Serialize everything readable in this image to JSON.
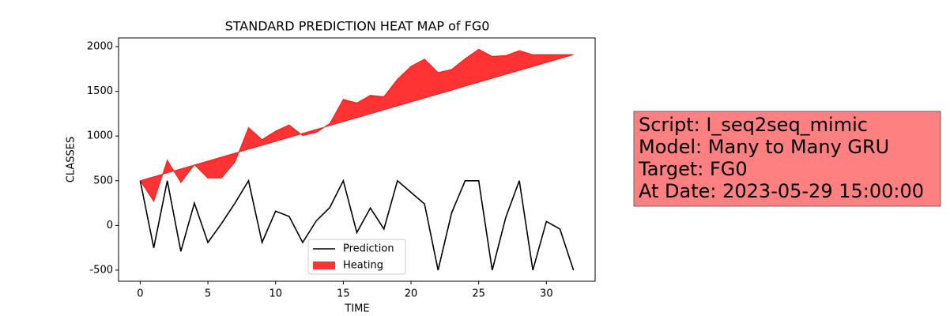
{
  "chart_data": {
    "type": "line",
    "title": "STANDARD PREDICTION HEAT MAP of FG0",
    "xlabel": "TIME",
    "ylabel": "CLASSES",
    "x": [
      0,
      1,
      2,
      3,
      4,
      5,
      6,
      7,
      8,
      9,
      10,
      11,
      12,
      13,
      14,
      15,
      16,
      17,
      18,
      19,
      20,
      21,
      22,
      23,
      24,
      25,
      26,
      27,
      28,
      29,
      30,
      31,
      32
    ],
    "series": [
      {
        "name": "Prediction",
        "color": "#000000",
        "values": [
          500,
          -250,
          500,
          -290,
          250,
          -190,
          20,
          250,
          500,
          -190,
          160,
          100,
          -190,
          50,
          200,
          500,
          -80,
          195,
          -40,
          500,
          370,
          240,
          -500,
          140,
          500,
          500,
          -500,
          90,
          500,
          -500,
          45,
          -40,
          -500
        ]
      },
      {
        "name": "Heating",
        "color": "#ff0000",
        "alpha": 0.8,
        "fill_between": true,
        "values": [
          500,
          270,
          730,
          480,
          680,
          530,
          530,
          710,
          1095,
          960,
          1055,
          1125,
          1005,
          1040,
          1140,
          1410,
          1370,
          1455,
          1440,
          1635,
          1780,
          1860,
          1710,
          1745,
          1865,
          1970,
          1890,
          1900,
          1955,
          1910,
          1910,
          1910,
          1910
        ],
        "baseline": [
          500,
          544,
          588,
          632,
          676,
          720,
          764,
          808,
          853,
          897,
          941,
          985,
          1029,
          1073,
          1117,
          1161,
          1205,
          1249,
          1293,
          1337,
          1381,
          1425,
          1469,
          1513,
          1558,
          1602,
          1646,
          1690,
          1734,
          1778,
          1822,
          1866,
          1910
        ]
      }
    ],
    "xlim": [
      -1.6,
      33.6
    ],
    "ylim": [
      -624,
      2097
    ],
    "xticks": [
      0,
      5,
      10,
      15,
      20,
      25,
      30
    ],
    "yticks": [
      -500,
      0,
      500,
      1000,
      1500,
      2000
    ],
    "legend": "lower center",
    "annotation": [
      "Script: I_seq2seq_mimic",
      "Model: Many to Many GRU",
      "Target: FG0",
      "At Date: 2023-05-29 15:00:00"
    ],
    "annotation_color": "#ff8080"
  }
}
